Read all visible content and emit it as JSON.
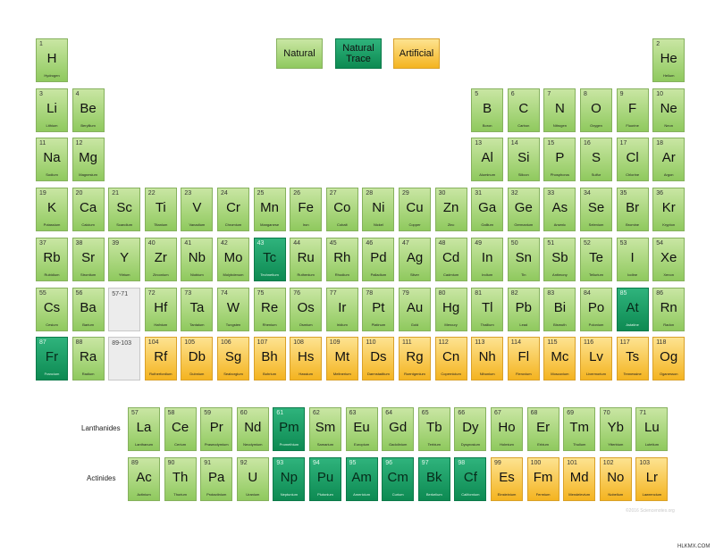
{
  "legend": [
    {
      "label": "Natural",
      "cat": "natural"
    },
    {
      "label": "Natural Trace",
      "cat": "trace"
    },
    {
      "label": "Artificial",
      "cat": "artificial"
    }
  ],
  "row_labels": {
    "lanthanides": "Lanthanides",
    "actinides": "Actinides"
  },
  "copyright": "©2016 Sciencenotes.org",
  "watermark": "HLKMX.COM",
  "main": [
    {
      "n": "1",
      "s": "H",
      "name": "Hydrogen",
      "c": "natural",
      "r": 1,
      "col": 1
    },
    {
      "n": "2",
      "s": "He",
      "name": "Helium",
      "c": "natural",
      "r": 1,
      "col": 18
    },
    {
      "n": "3",
      "s": "Li",
      "name": "Lithium",
      "c": "natural",
      "r": 2,
      "col": 1
    },
    {
      "n": "4",
      "s": "Be",
      "name": "Beryllium",
      "c": "natural",
      "r": 2,
      "col": 2
    },
    {
      "n": "5",
      "s": "B",
      "name": "Boron",
      "c": "natural",
      "r": 2,
      "col": 13
    },
    {
      "n": "6",
      "s": "C",
      "name": "Carbon",
      "c": "natural",
      "r": 2,
      "col": 14
    },
    {
      "n": "7",
      "s": "N",
      "name": "Nitrogen",
      "c": "natural",
      "r": 2,
      "col": 15
    },
    {
      "n": "8",
      "s": "O",
      "name": "Oxygen",
      "c": "natural",
      "r": 2,
      "col": 16
    },
    {
      "n": "9",
      "s": "F",
      "name": "Fluorine",
      "c": "natural",
      "r": 2,
      "col": 17
    },
    {
      "n": "10",
      "s": "Ne",
      "name": "Neon",
      "c": "natural",
      "r": 2,
      "col": 18
    },
    {
      "n": "11",
      "s": "Na",
      "name": "Sodium",
      "c": "natural",
      "r": 3,
      "col": 1
    },
    {
      "n": "12",
      "s": "Mg",
      "name": "Magnesium",
      "c": "natural",
      "r": 3,
      "col": 2
    },
    {
      "n": "13",
      "s": "Al",
      "name": "Aluminum",
      "c": "natural",
      "r": 3,
      "col": 13
    },
    {
      "n": "14",
      "s": "Si",
      "name": "Silicon",
      "c": "natural",
      "r": 3,
      "col": 14
    },
    {
      "n": "15",
      "s": "P",
      "name": "Phosphorus",
      "c": "natural",
      "r": 3,
      "col": 15
    },
    {
      "n": "16",
      "s": "S",
      "name": "Sulfur",
      "c": "natural",
      "r": 3,
      "col": 16
    },
    {
      "n": "17",
      "s": "Cl",
      "name": "Chlorine",
      "c": "natural",
      "r": 3,
      "col": 17
    },
    {
      "n": "18",
      "s": "Ar",
      "name": "Argon",
      "c": "natural",
      "r": 3,
      "col": 18
    },
    {
      "n": "19",
      "s": "K",
      "name": "Potassium",
      "c": "natural",
      "r": 4,
      "col": 1
    },
    {
      "n": "20",
      "s": "Ca",
      "name": "Calcium",
      "c": "natural",
      "r": 4,
      "col": 2
    },
    {
      "n": "21",
      "s": "Sc",
      "name": "Scandium",
      "c": "natural",
      "r": 4,
      "col": 3
    },
    {
      "n": "22",
      "s": "Ti",
      "name": "Titanium",
      "c": "natural",
      "r": 4,
      "col": 4
    },
    {
      "n": "23",
      "s": "V",
      "name": "Vanadium",
      "c": "natural",
      "r": 4,
      "col": 5
    },
    {
      "n": "24",
      "s": "Cr",
      "name": "Chromium",
      "c": "natural",
      "r": 4,
      "col": 6
    },
    {
      "n": "25",
      "s": "Mn",
      "name": "Manganese",
      "c": "natural",
      "r": 4,
      "col": 7
    },
    {
      "n": "26",
      "s": "Fe",
      "name": "Iron",
      "c": "natural",
      "r": 4,
      "col": 8
    },
    {
      "n": "27",
      "s": "Co",
      "name": "Cobalt",
      "c": "natural",
      "r": 4,
      "col": 9
    },
    {
      "n": "28",
      "s": "Ni",
      "name": "Nickel",
      "c": "natural",
      "r": 4,
      "col": 10
    },
    {
      "n": "29",
      "s": "Cu",
      "name": "Copper",
      "c": "natural",
      "r": 4,
      "col": 11
    },
    {
      "n": "30",
      "s": "Zn",
      "name": "Zinc",
      "c": "natural",
      "r": 4,
      "col": 12
    },
    {
      "n": "31",
      "s": "Ga",
      "name": "Gallium",
      "c": "natural",
      "r": 4,
      "col": 13
    },
    {
      "n": "32",
      "s": "Ge",
      "name": "Germanium",
      "c": "natural",
      "r": 4,
      "col": 14
    },
    {
      "n": "33",
      "s": "As",
      "name": "Arsenic",
      "c": "natural",
      "r": 4,
      "col": 15
    },
    {
      "n": "34",
      "s": "Se",
      "name": "Selenium",
      "c": "natural",
      "r": 4,
      "col": 16
    },
    {
      "n": "35",
      "s": "Br",
      "name": "Bromine",
      "c": "natural",
      "r": 4,
      "col": 17
    },
    {
      "n": "36",
      "s": "Kr",
      "name": "Krypton",
      "c": "natural",
      "r": 4,
      "col": 18
    },
    {
      "n": "37",
      "s": "Rb",
      "name": "Rubidium",
      "c": "natural",
      "r": 5,
      "col": 1
    },
    {
      "n": "38",
      "s": "Sr",
      "name": "Strontium",
      "c": "natural",
      "r": 5,
      "col": 2
    },
    {
      "n": "39",
      "s": "Y",
      "name": "Yttrium",
      "c": "natural",
      "r": 5,
      "col": 3
    },
    {
      "n": "40",
      "s": "Zr",
      "name": "Zirconium",
      "c": "natural",
      "r": 5,
      "col": 4
    },
    {
      "n": "41",
      "s": "Nb",
      "name": "Niobium",
      "c": "natural",
      "r": 5,
      "col": 5
    },
    {
      "n": "42",
      "s": "Mo",
      "name": "Molybdenum",
      "c": "natural",
      "r": 5,
      "col": 6
    },
    {
      "n": "43",
      "s": "Tc",
      "name": "Technetium",
      "c": "trace",
      "r": 5,
      "col": 7
    },
    {
      "n": "44",
      "s": "Ru",
      "name": "Ruthenium",
      "c": "natural",
      "r": 5,
      "col": 8
    },
    {
      "n": "45",
      "s": "Rh",
      "name": "Rhodium",
      "c": "natural",
      "r": 5,
      "col": 9
    },
    {
      "n": "46",
      "s": "Pd",
      "name": "Palladium",
      "c": "natural",
      "r": 5,
      "col": 10
    },
    {
      "n": "47",
      "s": "Ag",
      "name": "Silver",
      "c": "natural",
      "r": 5,
      "col": 11
    },
    {
      "n": "48",
      "s": "Cd",
      "name": "Cadmium",
      "c": "natural",
      "r": 5,
      "col": 12
    },
    {
      "n": "49",
      "s": "In",
      "name": "Indium",
      "c": "natural",
      "r": 5,
      "col": 13
    },
    {
      "n": "50",
      "s": "Sn",
      "name": "Tin",
      "c": "natural",
      "r": 5,
      "col": 14
    },
    {
      "n": "51",
      "s": "Sb",
      "name": "Antimony",
      "c": "natural",
      "r": 5,
      "col": 15
    },
    {
      "n": "52",
      "s": "Te",
      "name": "Tellurium",
      "c": "natural",
      "r": 5,
      "col": 16
    },
    {
      "n": "53",
      "s": "I",
      "name": "Iodine",
      "c": "natural",
      "r": 5,
      "col": 17
    },
    {
      "n": "54",
      "s": "Xe",
      "name": "Xenon",
      "c": "natural",
      "r": 5,
      "col": 18
    },
    {
      "n": "55",
      "s": "Cs",
      "name": "Cesium",
      "c": "natural",
      "r": 6,
      "col": 1
    },
    {
      "n": "56",
      "s": "Ba",
      "name": "Barium",
      "c": "natural",
      "r": 6,
      "col": 2
    },
    {
      "n": "57-71",
      "s": "",
      "name": "",
      "c": "empty",
      "r": 6,
      "col": 3
    },
    {
      "n": "72",
      "s": "Hf",
      "name": "Hafnium",
      "c": "natural",
      "r": 6,
      "col": 4
    },
    {
      "n": "73",
      "s": "Ta",
      "name": "Tantalum",
      "c": "natural",
      "r": 6,
      "col": 5
    },
    {
      "n": "74",
      "s": "W",
      "name": "Tungsten",
      "c": "natural",
      "r": 6,
      "col": 6
    },
    {
      "n": "75",
      "s": "Re",
      "name": "Rhenium",
      "c": "natural",
      "r": 6,
      "col": 7
    },
    {
      "n": "76",
      "s": "Os",
      "name": "Osmium",
      "c": "natural",
      "r": 6,
      "col": 8
    },
    {
      "n": "77",
      "s": "Ir",
      "name": "Iridium",
      "c": "natural",
      "r": 6,
      "col": 9
    },
    {
      "n": "78",
      "s": "Pt",
      "name": "Platinum",
      "c": "natural",
      "r": 6,
      "col": 10
    },
    {
      "n": "79",
      "s": "Au",
      "name": "Gold",
      "c": "natural",
      "r": 6,
      "col": 11
    },
    {
      "n": "80",
      "s": "Hg",
      "name": "Mercury",
      "c": "natural",
      "r": 6,
      "col": 12
    },
    {
      "n": "81",
      "s": "Tl",
      "name": "Thallium",
      "c": "natural",
      "r": 6,
      "col": 13
    },
    {
      "n": "82",
      "s": "Pb",
      "name": "Lead",
      "c": "natural",
      "r": 6,
      "col": 14
    },
    {
      "n": "83",
      "s": "Bi",
      "name": "Bismuth",
      "c": "natural",
      "r": 6,
      "col": 15
    },
    {
      "n": "84",
      "s": "Po",
      "name": "Polonium",
      "c": "natural",
      "r": 6,
      "col": 16
    },
    {
      "n": "85",
      "s": "At",
      "name": "Astatine",
      "c": "trace",
      "r": 6,
      "col": 17
    },
    {
      "n": "86",
      "s": "Rn",
      "name": "Radon",
      "c": "natural",
      "r": 6,
      "col": 18
    },
    {
      "n": "87",
      "s": "Fr",
      "name": "Francium",
      "c": "trace",
      "r": 7,
      "col": 1
    },
    {
      "n": "88",
      "s": "Ra",
      "name": "Radium",
      "c": "natural",
      "r": 7,
      "col": 2
    },
    {
      "n": "89-103",
      "s": "",
      "name": "",
      "c": "empty",
      "r": 7,
      "col": 3
    },
    {
      "n": "104",
      "s": "Rf",
      "name": "Rutherfordium",
      "c": "artificial",
      "r": 7,
      "col": 4
    },
    {
      "n": "105",
      "s": "Db",
      "name": "Dubnium",
      "c": "artificial",
      "r": 7,
      "col": 5
    },
    {
      "n": "106",
      "s": "Sg",
      "name": "Seaborgium",
      "c": "artificial",
      "r": 7,
      "col": 6
    },
    {
      "n": "107",
      "s": "Bh",
      "name": "Bohrium",
      "c": "artificial",
      "r": 7,
      "col": 7
    },
    {
      "n": "108",
      "s": "Hs",
      "name": "Hassium",
      "c": "artificial",
      "r": 7,
      "col": 8
    },
    {
      "n": "109",
      "s": "Mt",
      "name": "Meitnerium",
      "c": "artificial",
      "r": 7,
      "col": 9
    },
    {
      "n": "110",
      "s": "Ds",
      "name": "Darmstadtium",
      "c": "artificial",
      "r": 7,
      "col": 10
    },
    {
      "n": "111",
      "s": "Rg",
      "name": "Roentgenium",
      "c": "artificial",
      "r": 7,
      "col": 11
    },
    {
      "n": "112",
      "s": "Cn",
      "name": "Copernicium",
      "c": "artificial",
      "r": 7,
      "col": 12
    },
    {
      "n": "113",
      "s": "Nh",
      "name": "Nihonium",
      "c": "artificial",
      "r": 7,
      "col": 13
    },
    {
      "n": "114",
      "s": "Fl",
      "name": "Flerovium",
      "c": "artificial",
      "r": 7,
      "col": 14
    },
    {
      "n": "115",
      "s": "Mc",
      "name": "Moscovium",
      "c": "artificial",
      "r": 7,
      "col": 15
    },
    {
      "n": "116",
      "s": "Lv",
      "name": "Livermorium",
      "c": "artificial",
      "r": 7,
      "col": 16
    },
    {
      "n": "117",
      "s": "Ts",
      "name": "Tennessine",
      "c": "artificial",
      "r": 7,
      "col": 17
    },
    {
      "n": "118",
      "s": "Og",
      "name": "Oganesson",
      "c": "artificial",
      "r": 7,
      "col": 18
    }
  ],
  "lanthanides": [
    {
      "n": "57",
      "s": "La",
      "name": "Lanthanum",
      "c": "natural"
    },
    {
      "n": "58",
      "s": "Ce",
      "name": "Cerium",
      "c": "natural"
    },
    {
      "n": "59",
      "s": "Pr",
      "name": "Praseodymium",
      "c": "natural"
    },
    {
      "n": "60",
      "s": "Nd",
      "name": "Neodymium",
      "c": "natural"
    },
    {
      "n": "61",
      "s": "Pm",
      "name": "Promethium",
      "c": "trace"
    },
    {
      "n": "62",
      "s": "Sm",
      "name": "Samarium",
      "c": "natural"
    },
    {
      "n": "63",
      "s": "Eu",
      "name": "Europium",
      "c": "natural"
    },
    {
      "n": "64",
      "s": "Gd",
      "name": "Gadolinium",
      "c": "natural"
    },
    {
      "n": "65",
      "s": "Tb",
      "name": "Terbium",
      "c": "natural"
    },
    {
      "n": "66",
      "s": "Dy",
      "name": "Dysprosium",
      "c": "natural"
    },
    {
      "n": "67",
      "s": "Ho",
      "name": "Holmium",
      "c": "natural"
    },
    {
      "n": "68",
      "s": "Er",
      "name": "Erbium",
      "c": "natural"
    },
    {
      "n": "69",
      "s": "Tm",
      "name": "Thulium",
      "c": "natural"
    },
    {
      "n": "70",
      "s": "Yb",
      "name": "Ytterbium",
      "c": "natural"
    },
    {
      "n": "71",
      "s": "Lu",
      "name": "Lutetium",
      "c": "natural"
    }
  ],
  "actinides": [
    {
      "n": "89",
      "s": "Ac",
      "name": "Actinium",
      "c": "natural"
    },
    {
      "n": "90",
      "s": "Th",
      "name": "Thorium",
      "c": "natural"
    },
    {
      "n": "91",
      "s": "Pa",
      "name": "Protactinium",
      "c": "natural"
    },
    {
      "n": "92",
      "s": "U",
      "name": "Uranium",
      "c": "natural"
    },
    {
      "n": "93",
      "s": "Np",
      "name": "Neptunium",
      "c": "trace"
    },
    {
      "n": "94",
      "s": "Pu",
      "name": "Plutonium",
      "c": "trace"
    },
    {
      "n": "95",
      "s": "Am",
      "name": "Americium",
      "c": "trace"
    },
    {
      "n": "96",
      "s": "Cm",
      "name": "Curium",
      "c": "trace"
    },
    {
      "n": "97",
      "s": "Bk",
      "name": "Berkelium",
      "c": "trace"
    },
    {
      "n": "98",
      "s": "Cf",
      "name": "Californium",
      "c": "trace"
    },
    {
      "n": "99",
      "s": "Es",
      "name": "Einsteinium",
      "c": "artificial"
    },
    {
      "n": "100",
      "s": "Fm",
      "name": "Fermium",
      "c": "artificial"
    },
    {
      "n": "101",
      "s": "Md",
      "name": "Mendelevium",
      "c": "artificial"
    },
    {
      "n": "102",
      "s": "No",
      "name": "Nobelium",
      "c": "artificial"
    },
    {
      "n": "103",
      "s": "Lr",
      "name": "Lawrencium",
      "c": "artificial"
    }
  ]
}
